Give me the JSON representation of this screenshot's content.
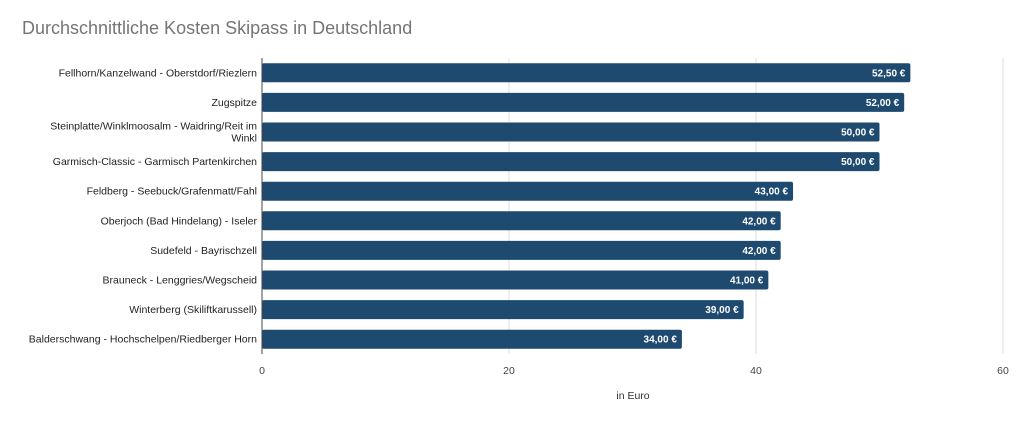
{
  "chart_data": {
    "type": "bar",
    "orientation": "horizontal",
    "title": "Durchschnittliche Kosten Skipass in Deutschland",
    "xlabel": "in Euro",
    "ylabel": "",
    "categories": [
      "Fellhorn/Kanzelwand - Oberstdorf/Riezlern",
      "Zugspitze",
      "Steinplatte/Winklmoosalm - Waidring/Reit im Winkl",
      "Garmisch-Classic - Garmisch Partenkirchen",
      "Feldberg - Seebuck/Grafenmatt/Fahl",
      "Oberjoch (Bad Hindelang) - Iseler",
      "Sudefeld - Bayrischzell",
      "Brauneck - Lenggries/Wegscheid",
      "Winterberg (Skiliftkarussell)",
      "Balderschwang - Hochschelpen/Riedberger Horn"
    ],
    "category_lines": [
      [
        "Fellhorn/Kanzelwand - Oberstdorf/Riezlern"
      ],
      [
        "Zugspitze"
      ],
      [
        "Steinplatte/Winklmoosalm - Waidring/Reit im",
        "Winkl"
      ],
      [
        "Garmisch-Classic - Garmisch Partenkirchen"
      ],
      [
        "Feldberg - Seebuck/Grafenmatt/Fahl"
      ],
      [
        "Oberjoch (Bad Hindelang) - Iseler"
      ],
      [
        "Sudefeld - Bayrischzell"
      ],
      [
        "Brauneck - Lenggries/Wegscheid"
      ],
      [
        "Winterberg (Skiliftkarussell)"
      ],
      [
        "Balderschwang - Hochschelpen/Riedberger Horn"
      ]
    ],
    "values": [
      52.5,
      52.0,
      50.0,
      50.0,
      43.0,
      42.0,
      42.0,
      41.0,
      39.0,
      34.0
    ],
    "data_labels": [
      "52,50 €",
      "52,00 €",
      "50,00 €",
      "50,00 €",
      "43,00 €",
      "42,00 €",
      "42,00 €",
      "41,00 €",
      "39,00 €",
      "34,00 €"
    ],
    "xlim": [
      0,
      60
    ],
    "x_ticks": [
      0,
      20,
      40,
      60
    ],
    "x_tick_labels": [
      "0",
      "20",
      "40",
      "60"
    ],
    "grid": true,
    "legend": "none",
    "colors": {
      "bar": "#1f4a70",
      "grid": "#dddddd",
      "axis": "#444444",
      "title": "#757575"
    }
  }
}
